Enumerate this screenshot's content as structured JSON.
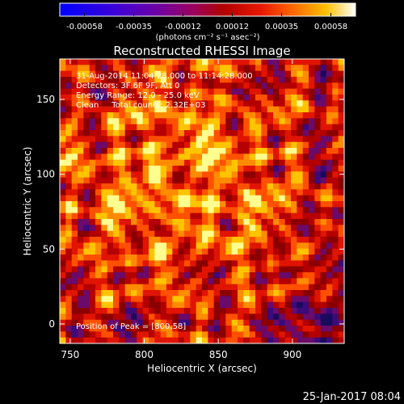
{
  "chart_data": {
    "type": "heatmap",
    "title": "Reconstructed RHESSI Image",
    "xlabel": "Heliocentric X (arcsec)",
    "ylabel": "Heliocentric Y (arcsec)",
    "xlim": [
      743,
      935
    ],
    "ylim": [
      -13,
      177
    ],
    "xticks": [
      750,
      800,
      850,
      900
    ],
    "yticks": [
      0,
      50,
      100,
      150
    ],
    "colorbar": {
      "unit_line": "(photons cm⁻² s⁻¹ asec⁻²)",
      "ticks": [
        "-0.00058",
        "-0.00035",
        "-0.00012",
        "0.00012",
        "0.00035",
        "0.00058"
      ],
      "range": [
        -0.00058,
        0.00058
      ]
    },
    "annotations": [
      "31-Aug-2014 11:04:28.000 to 11:14:28.000",
      "Detectors: 3F 6F 9F, Att 0",
      "Energy Range: 12.0 - 25.0 keV",
      "Clean     Total counts: 2.32E+03"
    ],
    "peak_label": "Position of Peak = [800,58]",
    "peak": [
      800,
      58
    ],
    "timestamp": "25-Jan-2017 08:04"
  }
}
